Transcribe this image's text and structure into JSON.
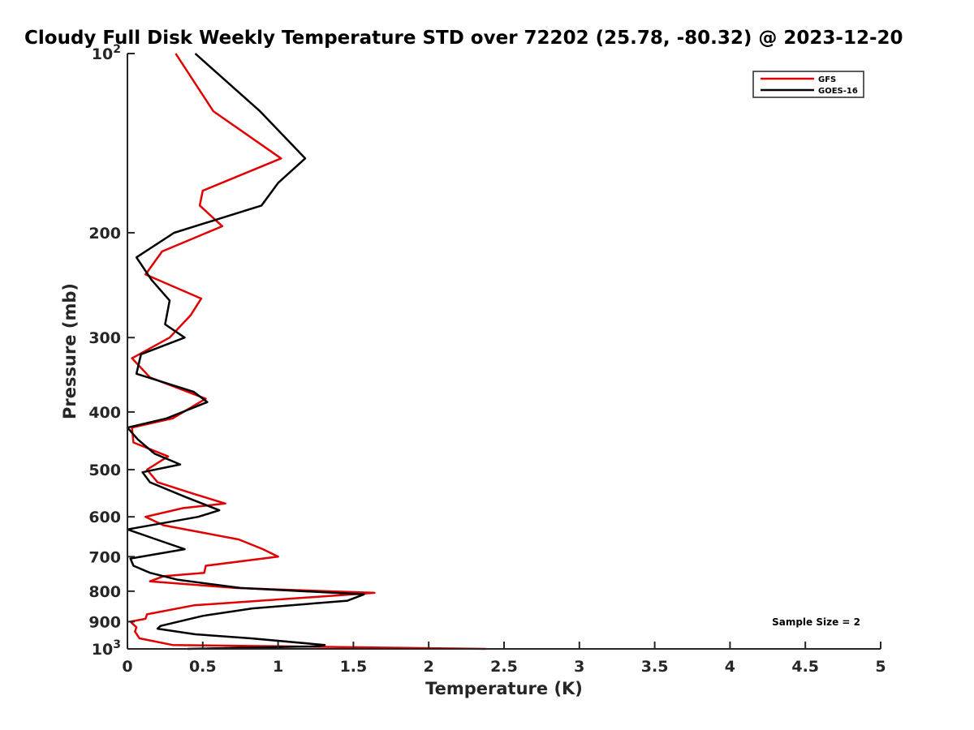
{
  "chart_data": {
    "type": "line",
    "title": "Cloudy Full Disk Weekly Temperature STD over 72202 (25.78, -80.32) @ 2023-12-20",
    "xlabel": "Temperature (K)",
    "ylabel": "Pressure (mb)",
    "xlim": [
      0,
      5
    ],
    "ylim": [
      100,
      1000
    ],
    "y_scale": "log",
    "y_reversed": true,
    "x_ticks": [
      "0",
      "0.5",
      "1",
      "1.5",
      "2",
      "2.5",
      "3",
      "3.5",
      "4",
      "4.5",
      "5"
    ],
    "y_tick_values": [
      100,
      200,
      300,
      400,
      500,
      600,
      700,
      800,
      900,
      1000
    ],
    "y_tick_labels": [
      "10^2",
      "200",
      "300",
      "400",
      "500",
      "600",
      "700",
      "800",
      "900",
      "10^3"
    ],
    "grid": false,
    "legend_position": "top-right",
    "annotation": "Sample Size = 2",
    "series": [
      {
        "name": "GFS",
        "color": "#e00000",
        "points": [
          [
            0.32,
            100
          ],
          [
            0.57,
            125
          ],
          [
            1.02,
            150
          ],
          [
            0.5,
            170
          ],
          [
            0.48,
            180
          ],
          [
            0.63,
            195
          ],
          [
            0.23,
            215
          ],
          [
            0.12,
            235
          ],
          [
            0.49,
            258
          ],
          [
            0.42,
            275
          ],
          [
            0.28,
            300
          ],
          [
            0.03,
            325
          ],
          [
            0.15,
            350
          ],
          [
            0.52,
            380
          ],
          [
            0.3,
            410
          ],
          [
            0.03,
            425
          ],
          [
            0.04,
            450
          ],
          [
            0.27,
            475
          ],
          [
            0.13,
            500
          ],
          [
            0.2,
            525
          ],
          [
            0.45,
            550
          ],
          [
            0.65,
            570
          ],
          [
            0.37,
            580
          ],
          [
            0.12,
            600
          ],
          [
            0.24,
            620
          ],
          [
            0.74,
            655
          ],
          [
            0.9,
            680
          ],
          [
            1.0,
            700
          ],
          [
            0.52,
            725
          ],
          [
            0.51,
            745
          ],
          [
            0.24,
            755
          ],
          [
            0.15,
            770
          ],
          [
            0.72,
            790
          ],
          [
            1.64,
            805
          ],
          [
            0.44,
            845
          ],
          [
            0.13,
            875
          ],
          [
            0.12,
            890
          ],
          [
            0.02,
            900
          ],
          [
            0.06,
            920
          ],
          [
            0.05,
            935
          ],
          [
            0.08,
            960
          ],
          [
            0.3,
            985
          ],
          [
            2.38,
            1000
          ]
        ]
      },
      {
        "name": "GOES-16",
        "color": "#000000",
        "points": [
          [
            0.45,
            100
          ],
          [
            0.88,
            125
          ],
          [
            1.18,
            150
          ],
          [
            1.0,
            165
          ],
          [
            0.89,
            180
          ],
          [
            0.31,
            200
          ],
          [
            0.06,
            220
          ],
          [
            0.16,
            240
          ],
          [
            0.28,
            260
          ],
          [
            0.25,
            285
          ],
          [
            0.38,
            300
          ],
          [
            0.09,
            320
          ],
          [
            0.06,
            345
          ],
          [
            0.44,
            370
          ],
          [
            0.53,
            385
          ],
          [
            0.26,
            410
          ],
          [
            0.0,
            425
          ],
          [
            0.07,
            445
          ],
          [
            0.18,
            470
          ],
          [
            0.35,
            490
          ],
          [
            0.1,
            505
          ],
          [
            0.15,
            525
          ],
          [
            0.38,
            555
          ],
          [
            0.61,
            585
          ],
          [
            0.47,
            600
          ],
          [
            0.0,
            630
          ],
          [
            0.23,
            660
          ],
          [
            0.38,
            680
          ],
          [
            0.02,
            705
          ],
          [
            0.04,
            725
          ],
          [
            0.15,
            745
          ],
          [
            0.33,
            765
          ],
          [
            0.75,
            790
          ],
          [
            1.57,
            810
          ],
          [
            1.46,
            830
          ],
          [
            0.83,
            855
          ],
          [
            0.5,
            880
          ],
          [
            0.22,
            915
          ],
          [
            0.2,
            925
          ],
          [
            0.45,
            945
          ],
          [
            0.82,
            960
          ],
          [
            1.31,
            985
          ],
          [
            1.27,
            990
          ],
          [
            0.4,
            1000
          ]
        ]
      }
    ]
  }
}
